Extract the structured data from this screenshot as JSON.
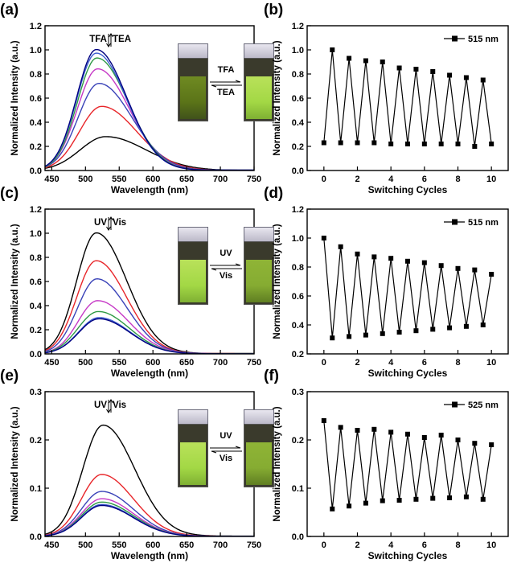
{
  "chart_data": [
    {
      "id": "a",
      "panel_label": "(a)",
      "type": "line",
      "xlabel": "Wavelength (nm)",
      "ylabel": "Normalized Intensity (a.u.)",
      "xlim": [
        440,
        750
      ],
      "ylim": [
        0,
        1.2
      ],
      "xticks": [
        450,
        500,
        550,
        600,
        650,
        700,
        750
      ],
      "yticks": [
        0.0,
        0.2,
        0.4,
        0.6,
        0.8,
        1.0,
        1.2
      ],
      "ytick_decimals": 1,
      "annotation": {
        "left": "TFA",
        "right": "TEA"
      },
      "inset": {
        "top": "TFA",
        "bottom": "TEA"
      },
      "series": [
        {
          "color": "#000000",
          "peak": 530,
          "amp": 0.28,
          "sl": 38,
          "sr": 60
        },
        {
          "color": "#e8262a",
          "peak": 524,
          "amp": 0.53,
          "sl": 33,
          "sr": 52
        },
        {
          "color": "#3a43b8",
          "peak": 520,
          "amp": 0.72,
          "sl": 31,
          "sr": 49
        },
        {
          "color": "#c639c6",
          "peak": 518,
          "amp": 0.84,
          "sl": 30,
          "sr": 47
        },
        {
          "color": "#2f9a45",
          "peak": 517,
          "amp": 0.93,
          "sl": 29,
          "sr": 46
        },
        {
          "color": "#3d5fd0",
          "peak": 516,
          "amp": 0.97,
          "sl": 29,
          "sr": 45
        },
        {
          "color": "#000080",
          "peak": 516,
          "amp": 1.0,
          "sl": 29,
          "sr": 45
        }
      ]
    },
    {
      "id": "b",
      "panel_label": "(b)",
      "type": "line",
      "xlabel": "Switching Cycles",
      "ylabel": "Normalized Intensity (a.u.)",
      "xlim": [
        -1,
        11
      ],
      "ylim": [
        0,
        1.2
      ],
      "xticks": [
        0,
        2,
        4,
        6,
        8,
        10
      ],
      "yticks": [
        0.0,
        0.2,
        0.4,
        0.6,
        0.8,
        1.0,
        1.2
      ],
      "ytick_decimals": 1,
      "legend": "515 nm",
      "x": [
        0,
        0.5,
        1,
        1.5,
        2,
        2.5,
        3,
        3.5,
        4,
        4.5,
        5,
        5.5,
        6,
        6.5,
        7,
        7.5,
        8,
        8.5,
        9,
        9.5,
        10
      ],
      "y": [
        0.23,
        1.0,
        0.23,
        0.93,
        0.23,
        0.91,
        0.23,
        0.9,
        0.22,
        0.85,
        0.22,
        0.84,
        0.22,
        0.82,
        0.22,
        0.79,
        0.22,
        0.77,
        0.2,
        0.75,
        0.22
      ]
    },
    {
      "id": "c",
      "panel_label": "(c)",
      "type": "line",
      "xlabel": "Wavelength (nm)",
      "ylabel": "Normalized Intensity (a.u.)",
      "xlim": [
        440,
        750
      ],
      "ylim": [
        0,
        1.2
      ],
      "xticks": [
        450,
        500,
        550,
        600,
        650,
        700,
        750
      ],
      "yticks": [
        0.0,
        0.2,
        0.4,
        0.6,
        0.8,
        1.0,
        1.2
      ],
      "ytick_decimals": 1,
      "annotation": {
        "left": "UV",
        "right": "Vis"
      },
      "inset": {
        "top": "UV",
        "bottom": "Vis"
      },
      "series": [
        {
          "color": "#000000",
          "peak": 516,
          "amp": 1.0,
          "sl": 29,
          "sr": 45
        },
        {
          "color": "#e8262a",
          "peak": 516,
          "amp": 0.77,
          "sl": 29,
          "sr": 45
        },
        {
          "color": "#3a43b8",
          "peak": 517,
          "amp": 0.62,
          "sl": 29,
          "sr": 45
        },
        {
          "color": "#c639c6",
          "peak": 518,
          "amp": 0.44,
          "sl": 29,
          "sr": 46
        },
        {
          "color": "#2f9a45",
          "peak": 519,
          "amp": 0.35,
          "sl": 30,
          "sr": 46
        },
        {
          "color": "#3d5fd0",
          "peak": 520,
          "amp": 0.3,
          "sl": 30,
          "sr": 46
        },
        {
          "color": "#000080",
          "peak": 520,
          "amp": 0.29,
          "sl": 30,
          "sr": 46
        }
      ]
    },
    {
      "id": "d",
      "panel_label": "(d)",
      "type": "line",
      "xlabel": "Switching Cycles",
      "ylabel": "Normalized Intensity (a.u.)",
      "xlim": [
        -1,
        11
      ],
      "ylim": [
        0.2,
        1.2
      ],
      "xticks": [
        0,
        2,
        4,
        6,
        8,
        10
      ],
      "yticks": [
        0.2,
        0.4,
        0.6,
        0.8,
        1.0,
        1.2
      ],
      "ytick_decimals": 1,
      "legend": "515 nm",
      "x": [
        0,
        0.5,
        1,
        1.5,
        2,
        2.5,
        3,
        3.5,
        4,
        4.5,
        5,
        5.5,
        6,
        6.5,
        7,
        7.5,
        8,
        8.5,
        9,
        9.5,
        10
      ],
      "y": [
        1.0,
        0.31,
        0.94,
        0.32,
        0.89,
        0.33,
        0.87,
        0.34,
        0.86,
        0.35,
        0.84,
        0.36,
        0.83,
        0.37,
        0.81,
        0.38,
        0.79,
        0.39,
        0.78,
        0.4,
        0.75
      ]
    },
    {
      "id": "e",
      "panel_label": "(e)",
      "type": "line",
      "xlabel": "Wavelength (nm)",
      "ylabel": "Normalized Intensity (a.u.)",
      "xlim": [
        440,
        750
      ],
      "ylim": [
        0,
        0.3
      ],
      "xticks": [
        450,
        500,
        550,
        600,
        650,
        700,
        750
      ],
      "yticks": [
        0.0,
        0.1,
        0.2,
        0.3
      ],
      "ytick_decimals": 1,
      "annotation": {
        "left": "UV",
        "right": "Vis"
      },
      "inset": {
        "top": "UV",
        "bottom": "Vis"
      },
      "series": [
        {
          "color": "#000000",
          "peak": 526,
          "amp": 0.23,
          "sl": 30,
          "sr": 47
        },
        {
          "color": "#e8262a",
          "peak": 524,
          "amp": 0.128,
          "sl": 30,
          "sr": 47
        },
        {
          "color": "#3a43b8",
          "peak": 524,
          "amp": 0.093,
          "sl": 30,
          "sr": 47
        },
        {
          "color": "#c639c6",
          "peak": 524,
          "amp": 0.078,
          "sl": 30,
          "sr": 47
        },
        {
          "color": "#2f9a45",
          "peak": 524,
          "amp": 0.071,
          "sl": 30,
          "sr": 47
        },
        {
          "color": "#3d5fd0",
          "peak": 524,
          "amp": 0.066,
          "sl": 30,
          "sr": 47
        },
        {
          "color": "#000080",
          "peak": 524,
          "amp": 0.064,
          "sl": 30,
          "sr": 47
        }
      ]
    },
    {
      "id": "f",
      "panel_label": "(f)",
      "type": "line",
      "xlabel": "Switching Cycles",
      "ylabel": "Normalized Intensity (a.u.)",
      "xlim": [
        -1,
        11
      ],
      "ylim": [
        0,
        0.3
      ],
      "xticks": [
        0,
        2,
        4,
        6,
        8,
        10
      ],
      "yticks": [
        0.0,
        0.1,
        0.2,
        0.3
      ],
      "ytick_decimals": 1,
      "legend": "525 nm",
      "x": [
        0,
        0.5,
        1,
        1.5,
        2,
        2.5,
        3,
        3.5,
        4,
        4.5,
        5,
        5.5,
        6,
        6.5,
        7,
        7.5,
        8,
        8.5,
        9,
        9.5,
        10
      ],
      "y": [
        0.24,
        0.057,
        0.226,
        0.063,
        0.22,
        0.069,
        0.222,
        0.074,
        0.216,
        0.075,
        0.212,
        0.077,
        0.205,
        0.079,
        0.21,
        0.08,
        0.2,
        0.082,
        0.193,
        0.077,
        0.19
      ]
    }
  ]
}
